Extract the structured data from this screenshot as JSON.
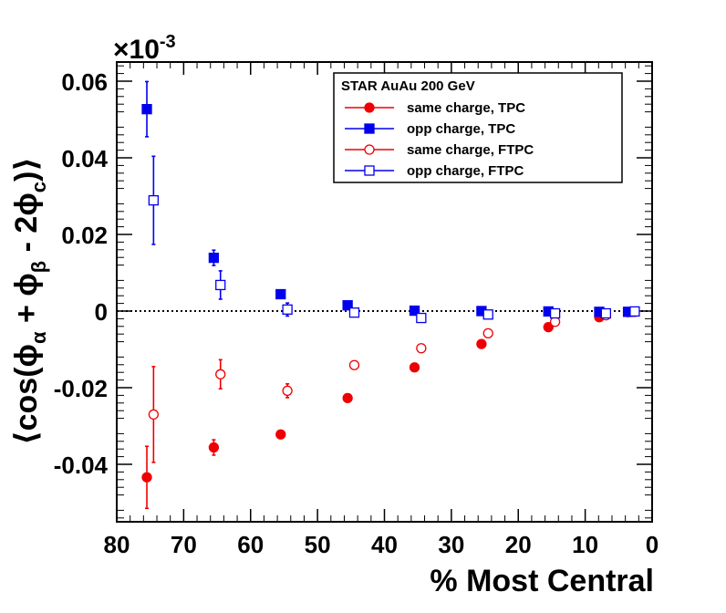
{
  "chart_data": {
    "type": "scatter",
    "title": "",
    "xlabel": "% Most Central",
    "ylabel_parts": [
      "⟨cos(ϕ",
      "α",
      " + ϕ",
      "β",
      " - 2ϕ",
      "c",
      ")⟩"
    ],
    "exponent": {
      "base": "×10",
      "power": "-3"
    },
    "xlim": [
      80,
      0
    ],
    "ylim": [
      -0.055,
      0.065
    ],
    "x_ticks": [
      80,
      70,
      60,
      50,
      40,
      30,
      20,
      10,
      0
    ],
    "y_ticks": [
      -0.04,
      -0.02,
      0,
      0.02,
      0.04,
      0.06
    ],
    "x_tick_labels": [
      "80",
      "70",
      "60",
      "50",
      "40",
      "30",
      "20",
      "10",
      "0"
    ],
    "y_tick_labels": [
      "-0.04",
      "-0.02",
      "0",
      "0.02",
      "0.04",
      "0.06"
    ],
    "zero_line": "dotted",
    "legend_title": "STAR  AuAu 200 GeV",
    "legend_position": "top-right",
    "series": [
      {
        "name": "same charge, TPC",
        "color": "#ee0000",
        "marker": "filled-circle",
        "points": [
          {
            "x": 75.5,
            "y": -0.0434,
            "err": 0.0081
          },
          {
            "x": 65.5,
            "y": -0.0356,
            "err": 0.002
          },
          {
            "x": 55.5,
            "y": -0.0322,
            "err": 0.0007
          },
          {
            "x": 45.5,
            "y": -0.0227,
            "err": 0.0004
          },
          {
            "x": 35.5,
            "y": -0.0147,
            "err": 0.0004
          },
          {
            "x": 25.5,
            "y": -0.0086,
            "err": 0.0003
          },
          {
            "x": 15.5,
            "y": -0.0042,
            "err": 0.0003
          },
          {
            "x": 7.9,
            "y": -0.0016,
            "err": 0.0003
          },
          {
            "x": 3.6,
            "y": -0.0003,
            "err": 0.0003
          }
        ]
      },
      {
        "name": "opp charge, TPC",
        "color": "#0000ee",
        "marker": "filled-square",
        "points": [
          {
            "x": 75.5,
            "y": 0.0527,
            "err": 0.0072
          },
          {
            "x": 65.5,
            "y": 0.0139,
            "err": 0.002
          },
          {
            "x": 55.5,
            "y": 0.0044,
            "err": 0.0006
          },
          {
            "x": 45.5,
            "y": 0.0015,
            "err": 0.0004
          },
          {
            "x": 35.5,
            "y": 0.0001,
            "err": 0.0003
          },
          {
            "x": 25.5,
            "y": 0.0,
            "err": 0.0003
          },
          {
            "x": 15.5,
            "y": -0.0001,
            "err": 0.0003
          },
          {
            "x": 7.9,
            "y": -0.0002,
            "err": 0.0003
          },
          {
            "x": 3.6,
            "y": -0.0002,
            "err": 0.0003
          }
        ]
      },
      {
        "name": "same charge, FTPC",
        "color": "#ee0000",
        "marker": "open-circle",
        "points": [
          {
            "x": 74.5,
            "y": -0.027,
            "err": 0.0125
          },
          {
            "x": 64.5,
            "y": -0.0165,
            "err": 0.0038
          },
          {
            "x": 54.5,
            "y": -0.0208,
            "err": 0.0018
          },
          {
            "x": 44.5,
            "y": -0.0141,
            "err": 0.0004
          },
          {
            "x": 34.5,
            "y": -0.0097,
            "err": 0.0004
          },
          {
            "x": 24.5,
            "y": -0.0058,
            "err": 0.0003
          },
          {
            "x": 14.5,
            "y": -0.0028,
            "err": 0.0003
          },
          {
            "x": 6.9,
            "y": -0.0011,
            "err": 0.0003
          },
          {
            "x": 2.6,
            "y": -0.0002,
            "err": 0.0003
          }
        ]
      },
      {
        "name": "opp charge, FTPC",
        "color": "#0000ee",
        "marker": "open-square",
        "points": [
          {
            "x": 74.5,
            "y": 0.0289,
            "err": 0.0115
          },
          {
            "x": 64.5,
            "y": 0.0068,
            "err": 0.0037
          },
          {
            "x": 54.5,
            "y": 0.0004,
            "err": 0.0017
          },
          {
            "x": 44.5,
            "y": -0.0004,
            "err": 0.0004
          },
          {
            "x": 34.5,
            "y": -0.0018,
            "err": 0.0004
          },
          {
            "x": 24.5,
            "y": -0.0009,
            "err": 0.0003
          },
          {
            "x": 14.5,
            "y": -0.0006,
            "err": 0.0003
          },
          {
            "x": 6.9,
            "y": -0.0006,
            "err": 0.0003
          },
          {
            "x": 2.6,
            "y": -0.0001,
            "err": 0.0003
          }
        ]
      }
    ]
  }
}
